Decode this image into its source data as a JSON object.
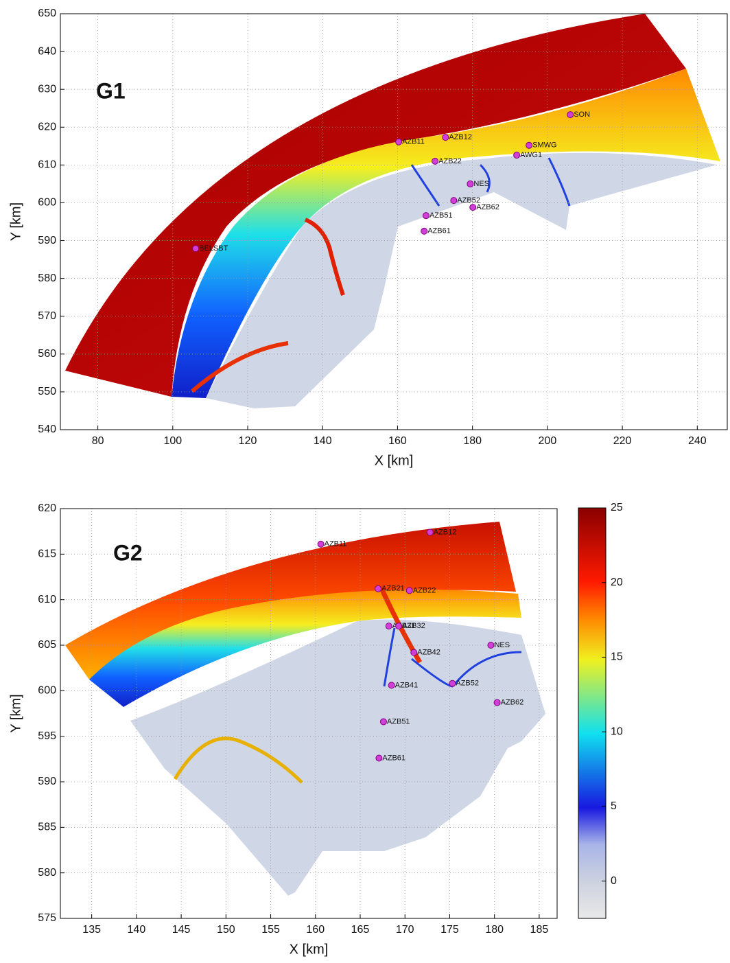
{
  "chart_data": [
    {
      "type": "scatter",
      "title": "G1",
      "xlabel": "X [km]",
      "ylabel": "Y [km]",
      "xlim": [
        70,
        248
      ],
      "ylim": [
        540,
        650
      ],
      "xticks": [
        80,
        100,
        120,
        140,
        160,
        180,
        200,
        220,
        240
      ],
      "yticks": [
        540,
        550,
        560,
        570,
        580,
        590,
        600,
        610,
        620,
        630,
        640,
        650
      ],
      "grid": true,
      "color": "#d23fd6",
      "labels": [
        "BELSBT",
        "AZB11",
        "AZB12",
        "AZB22",
        "NES",
        "AZB52",
        "AZB62",
        "AZB51",
        "AZB61",
        "SMWG",
        "AWG1",
        "SON"
      ],
      "x": [
        106.1,
        160.3,
        172.8,
        170.0,
        179.4,
        175.0,
        180.1,
        167.6,
        167.1,
        195.1,
        191.8,
        206.1
      ],
      "y": [
        587.9,
        616.1,
        617.3,
        611.0,
        605.0,
        600.6,
        598.8,
        596.6,
        592.5,
        615.2,
        612.6,
        623.3
      ]
    },
    {
      "type": "scatter",
      "title": "G2",
      "xlabel": "X [km]",
      "ylabel": "Y [km]",
      "xlim": [
        131.5,
        187
      ],
      "ylim": [
        575,
        620
      ],
      "xticks": [
        135,
        140,
        145,
        150,
        155,
        160,
        165,
        170,
        175,
        180,
        185
      ],
      "yticks": [
        575,
        580,
        585,
        590,
        595,
        600,
        605,
        610,
        615,
        620
      ],
      "grid": true,
      "color": "#d23fd6",
      "labels": [
        "AZB11",
        "AZB12",
        "AZB21",
        "AZB22",
        "AZB31",
        "AZB32",
        "AZB42",
        "NES",
        "AZB41",
        "AZB52",
        "AZB62",
        "AZB51",
        "AZB61"
      ],
      "x": [
        160.6,
        172.8,
        167.0,
        170.5,
        168.2,
        169.3,
        171.0,
        179.6,
        168.5,
        175.3,
        180.3,
        167.6,
        167.1
      ],
      "y": [
        616.1,
        617.4,
        611.2,
        611.0,
        607.1,
        607.1,
        604.2,
        605.0,
        600.6,
        600.8,
        598.7,
        596.6,
        592.6
      ],
      "colorbar": {
        "lim": [
          -2.5,
          25
        ],
        "ticks": [
          0,
          5,
          10,
          15,
          20,
          25
        ]
      }
    }
  ]
}
